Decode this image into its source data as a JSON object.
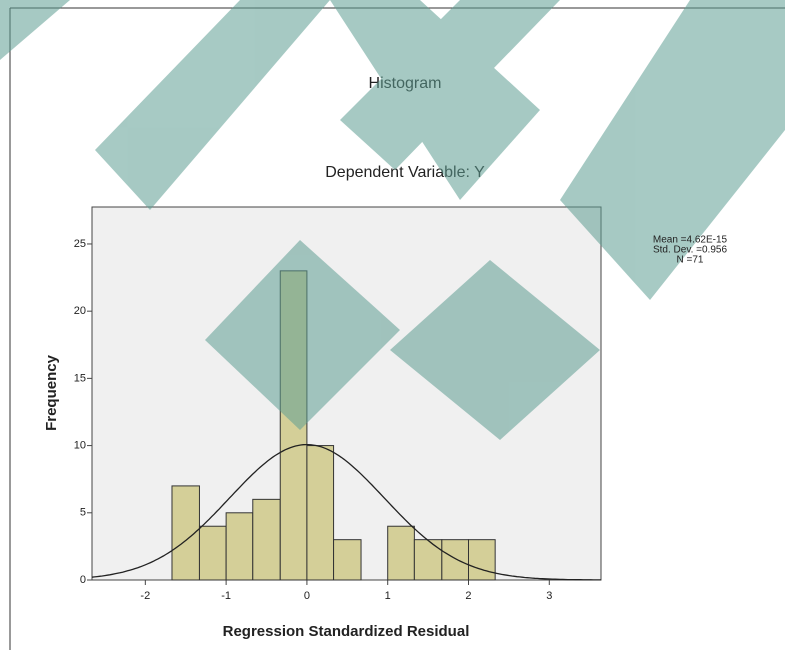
{
  "chart_data": {
    "type": "histogram",
    "title": "Histogram",
    "subtitle": "Dependent Variable: Y",
    "x_label": "Regression Standardized Residual",
    "y_label": "Frequency",
    "bins": [
      -1.67,
      -1.33,
      -1.0,
      -0.67,
      -0.33,
      0,
      0.33,
      0.67,
      1.0,
      1.33,
      1.67,
      2.0,
      2.33
    ],
    "counts": [
      7,
      4,
      5,
      6,
      23,
      10,
      3,
      0,
      4,
      3,
      3,
      3
    ],
    "color": "#d4cf98",
    "xlim": [
      -2.66,
      3.64
    ],
    "xticks": [
      -2,
      -1,
      0,
      1,
      2,
      3
    ],
    "ylim": [
      0,
      27.75
    ],
    "yticks": [
      0,
      5,
      10,
      15,
      20,
      25
    ],
    "stats": [
      {
        "value": 4.62e-15,
        "label": "Mean =4.62E-15"
      },
      {
        "value": 0.956,
        "label": "Std. Dev. =0.956"
      },
      {
        "value": 71,
        "label": "N =71"
      }
    ]
  }
}
